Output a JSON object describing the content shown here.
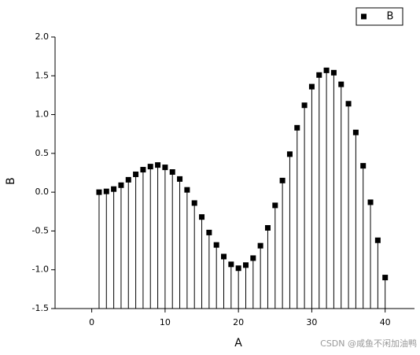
{
  "chart_data": {
    "type": "stem",
    "x_label": "A",
    "y_label": "B",
    "x": [
      1,
      2,
      3,
      4,
      5,
      6,
      7,
      8,
      9,
      10,
      11,
      12,
      13,
      14,
      15,
      16,
      17,
      18,
      19,
      20,
      21,
      22,
      23,
      24,
      25,
      26,
      27,
      28,
      29,
      30,
      31,
      32,
      33,
      34,
      35,
      36,
      37,
      38,
      39,
      40
    ],
    "series": [
      {
        "name": "B",
        "color": "#000000",
        "values": [
          0,
          0.01,
          0.04,
          0.09,
          0.16,
          0.23,
          0.29,
          0.33,
          0.35,
          0.32,
          0.26,
          0.17,
          0.03,
          -0.14,
          -0.32,
          -0.52,
          -0.68,
          -0.83,
          -0.93,
          -0.98,
          -0.94,
          -0.85,
          -0.69,
          -0.46,
          -0.17,
          0.15,
          0.49,
          0.83,
          1.12,
          1.36,
          1.51,
          1.57,
          1.54,
          1.39,
          1.14,
          0.77,
          0.34,
          -0.13,
          -0.62,
          -1.1
        ]
      }
    ],
    "xlim": [
      -5,
      44
    ],
    "xticks": [
      0,
      10,
      20,
      30,
      40
    ],
    "ylim": [
      -1.5,
      2
    ],
    "yticks": [
      {
        "value": 2,
        "label": "2.0"
      },
      1.5,
      {
        "value": 1,
        "label": "1.0"
      },
      0.5,
      {
        "value": 0,
        "label": "0.0"
      },
      -0.5,
      {
        "value": -1,
        "label": "-1.0"
      },
      -1.5
    ],
    "legend": "top-right",
    "watermark": "CSDN @咸鱼不闲加油鸭"
  }
}
